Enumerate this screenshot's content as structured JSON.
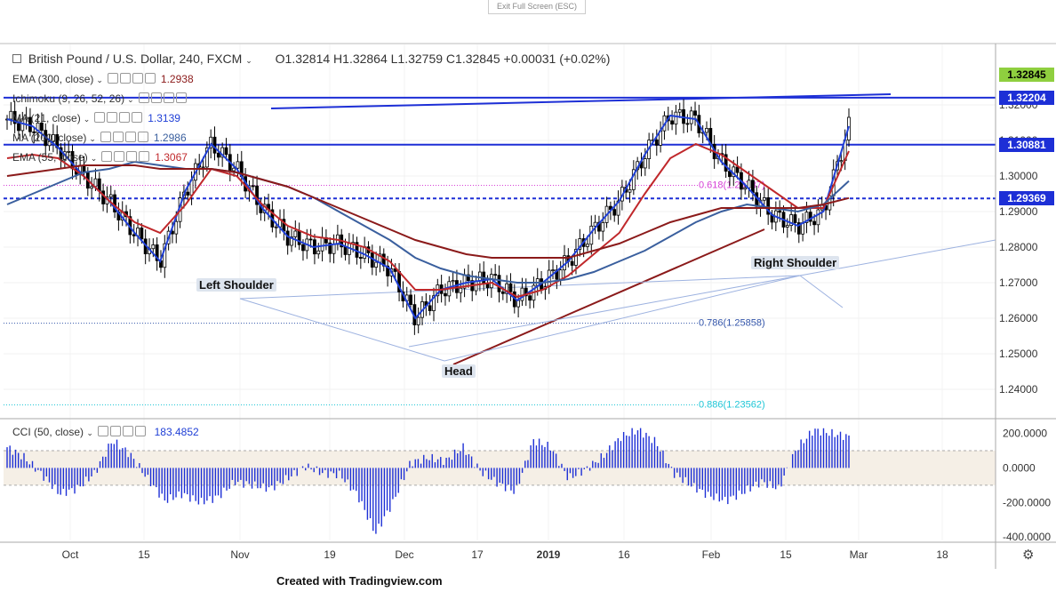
{
  "ui": {
    "exit_fullscreen": "Exit Full Screen (ESC)",
    "footer": "Created with Tradingview.com",
    "symbol": "British Pound / U.S. Dollar, 240, FXCM",
    "ohlc": "O1.32814  H1.32864  L1.32759  C1.32845  +0.00031 (+0.02%)",
    "indicators": [
      {
        "label": "EMA (300, close)",
        "value": "1.2938",
        "color": "#8b1a1a"
      },
      {
        "label": "Ichimoku (9, 26, 52, 26)",
        "value": "",
        "color": "#3355aa"
      },
      {
        "label": "MA (21, close)",
        "value": "1.3139",
        "color": "#1f3fd6"
      },
      {
        "label": "MA (200, close)",
        "value": "1.2986",
        "color": "#3a5f9e"
      },
      {
        "label": "EMA (55, close)",
        "value": "1.3067",
        "color": "#c0282b"
      }
    ],
    "cci_label": "CCI (50, close)",
    "cci_value": "183.4852",
    "settings_icon": "gear-icon"
  },
  "chart_data": {
    "type": "line",
    "symbol": "British Pound / U.S. Dollar",
    "timeframe": "240",
    "source": "FXCM",
    "ohlc": {
      "open": 1.32814,
      "high": 1.32864,
      "low": 1.32759,
      "close": 1.32845,
      "change": 0.00031,
      "change_pct": "+0.02%"
    },
    "x_ticks": [
      "Oct",
      "15",
      "Nov",
      "19",
      "Dec",
      "17",
      "2019",
      "16",
      "Feb",
      "15",
      "Mar",
      "18"
    ],
    "y_ticks": [
      1.32,
      1.31,
      1.3,
      1.29,
      1.28,
      1.27,
      1.26,
      1.25,
      1.24
    ],
    "ylim": [
      1.232,
      1.337
    ],
    "price_labels": [
      {
        "value": "1.32845",
        "style": "current"
      },
      {
        "value": "1.32204",
        "style": "level"
      },
      {
        "value": "1.30881",
        "style": "level"
      },
      {
        "value": "1.29369",
        "style": "level-dashed"
      }
    ],
    "fib_levels": [
      {
        "label": "0.618(1.29737)",
        "value": 1.29737,
        "color": "#d63fd6"
      },
      {
        "label": "0.786(1.25858)",
        "value": 1.25858,
        "color": "#3355aa"
      },
      {
        "label": "0.886(1.23562)",
        "value": 1.23562,
        "color": "#1fc6d6"
      }
    ],
    "annotations": [
      {
        "text": "Left Shoulder",
        "x": "Oct 29",
        "y": 1.27
      },
      {
        "text": "Head",
        "x": "Dec 12",
        "y": 1.248
      },
      {
        "text": "Right Shoulder",
        "x": "Feb 14",
        "y": 1.278
      }
    ],
    "series": [
      {
        "name": "MA (21, close)",
        "color": "#1f3fd6",
        "values": [
          1.316,
          1.314,
          1.308,
          1.3,
          1.293,
          1.284,
          1.276,
          1.296,
          1.309,
          1.302,
          1.291,
          1.283,
          1.28,
          1.281,
          1.278,
          1.274,
          1.26,
          1.268,
          1.27,
          1.271,
          1.265,
          1.27,
          1.276,
          1.285,
          1.293,
          1.306,
          1.317,
          1.316,
          1.304,
          1.297,
          1.289,
          1.286,
          1.29,
          1.314
        ]
      },
      {
        "name": "EMA (55, close)",
        "color": "#c0282b",
        "values": [
          1.305,
          1.306,
          1.305,
          1.3,
          1.293,
          1.287,
          1.284,
          1.292,
          1.302,
          1.3,
          1.292,
          1.286,
          1.283,
          1.282,
          1.28,
          1.276,
          1.268,
          1.268,
          1.269,
          1.27,
          1.266,
          1.268,
          1.272,
          1.278,
          1.284,
          1.295,
          1.305,
          1.309,
          1.306,
          1.301,
          1.296,
          1.291,
          1.291,
          1.307
        ]
      },
      {
        "name": "MA (200, close)",
        "color": "#3a5f9e",
        "values": [
          1.292,
          1.295,
          1.298,
          1.301,
          1.302,
          1.304,
          1.303,
          1.302,
          1.302,
          1.301,
          1.299,
          1.297,
          1.294,
          1.29,
          1.286,
          1.282,
          1.277,
          1.274,
          1.272,
          1.271,
          1.27,
          1.27,
          1.271,
          1.273,
          1.276,
          1.279,
          1.283,
          1.287,
          1.29,
          1.292,
          1.291,
          1.29,
          1.292,
          1.2986
        ]
      },
      {
        "name": "EMA (300, close)",
        "color": "#8b1a1a",
        "values": [
          1.3,
          1.301,
          1.302,
          1.303,
          1.303,
          1.303,
          1.302,
          1.302,
          1.302,
          1.301,
          1.299,
          1.297,
          1.294,
          1.291,
          1.288,
          1.285,
          1.282,
          1.28,
          1.278,
          1.277,
          1.277,
          1.277,
          1.277,
          1.279,
          1.281,
          1.284,
          1.287,
          1.289,
          1.291,
          1.291,
          1.291,
          1.291,
          1.292,
          1.2938
        ]
      }
    ],
    "cci": {
      "name": "CCI (50, close)",
      "last": 183.4852,
      "ylim": [
        -420,
        280
      ],
      "y_ticks": [
        200,
        0,
        -200,
        -400
      ],
      "values": [
        120,
        60,
        -40,
        -150,
        -120,
        -30,
        160,
        80,
        -60,
        -190,
        -150,
        -200,
        -170,
        -80,
        -100,
        -120,
        -60,
        10,
        -30,
        -40,
        -160,
        -380,
        -200,
        30,
        60,
        40,
        120,
        -20,
        -90,
        -140,
        160,
        120,
        -60,
        -10,
        70,
        180,
        220,
        150,
        -30,
        -100,
        -160,
        -190,
        -140,
        -80,
        -120,
        110,
        220,
        200,
        180
      ]
    }
  }
}
